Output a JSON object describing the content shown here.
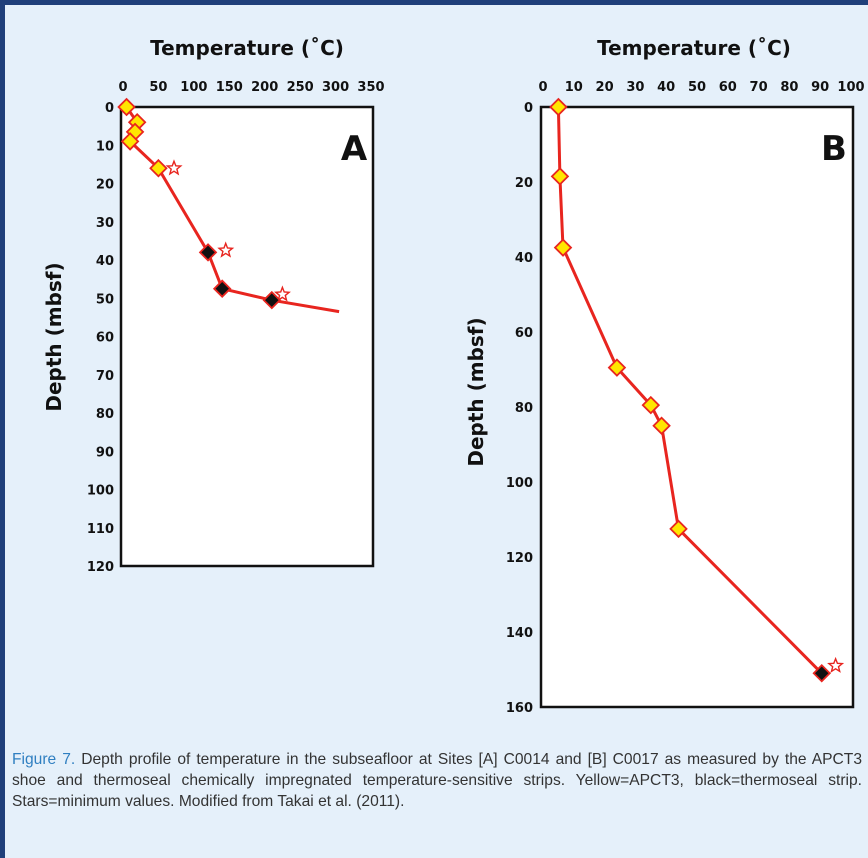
{
  "caption": {
    "figure_label": "Figure 7.",
    "text": "Depth profile of temperature in the subseafloor at Sites [A] C0014 and [B] C0017 as measured by the APCT3 shoe and thermoseal chemically impregnated temperature-sensitive strips. Yellow=APCT3, black=thermoseal strip. Stars=minimum values. Modified from Takai et al. (2011)."
  },
  "colors": {
    "frame": "#1f3f7a",
    "background": "#e5f0fa",
    "line": "#e8251f",
    "apct3": "#ffe600",
    "thermoseal": "#111111",
    "star": "#e8251f"
  },
  "chart_data": [
    {
      "panel": "A",
      "type": "line",
      "xlabel": "Temperature (˚C)",
      "ylabel": "Depth (mbsf)",
      "xlim": [
        0,
        350
      ],
      "ylim": [
        0,
        120
      ],
      "y_inverted": true,
      "x_axis_position": "top",
      "xticks": [
        0,
        50,
        100,
        150,
        200,
        250,
        300,
        350
      ],
      "yticks": [
        0,
        10,
        20,
        30,
        40,
        50,
        60,
        70,
        80,
        90,
        100,
        110,
        120
      ],
      "line": {
        "x": [
          5,
          20,
          17,
          10,
          50,
          120,
          140,
          210,
          305
        ],
        "y": [
          0,
          4,
          6.5,
          9,
          16,
          38,
          47.5,
          50.5,
          53.5
        ]
      },
      "apct3": {
        "x": [
          5,
          20,
          17,
          10,
          50
        ],
        "y": [
          0,
          4,
          6.5,
          9,
          16
        ]
      },
      "thermoseal": {
        "x": [
          120,
          140,
          210
        ],
        "y": [
          38,
          47.5,
          50.5
        ]
      },
      "minimum_stars": {
        "x": [
          72,
          145,
          225
        ],
        "y": [
          16,
          37.5,
          49
        ]
      }
    },
    {
      "panel": "B",
      "type": "line",
      "xlabel": "Temperature (˚C)",
      "ylabel": "Depth (mbsf)",
      "xlim": [
        0,
        100
      ],
      "ylim": [
        0,
        160
      ],
      "y_inverted": true,
      "x_axis_position": "top",
      "xticks": [
        0,
        10,
        20,
        30,
        40,
        50,
        60,
        70,
        80,
        90,
        100
      ],
      "yticks": [
        0,
        20,
        40,
        60,
        80,
        100,
        120,
        140,
        160
      ],
      "line": {
        "x": [
          5,
          5.5,
          6.5,
          24,
          35,
          38.5,
          44,
          90.5
        ],
        "y": [
          0,
          18.5,
          37.5,
          69.5,
          79.5,
          85,
          112.5,
          151
        ]
      },
      "apct3": {
        "x": [
          5,
          5.5,
          6.5,
          24,
          35,
          38.5,
          44
        ],
        "y": [
          0,
          18.5,
          37.5,
          69.5,
          79.5,
          85,
          112.5
        ]
      },
      "thermoseal": {
        "x": [
          90.5
        ],
        "y": [
          151
        ]
      },
      "minimum_stars": {
        "x": [
          95
        ],
        "y": [
          149
        ]
      }
    }
  ]
}
